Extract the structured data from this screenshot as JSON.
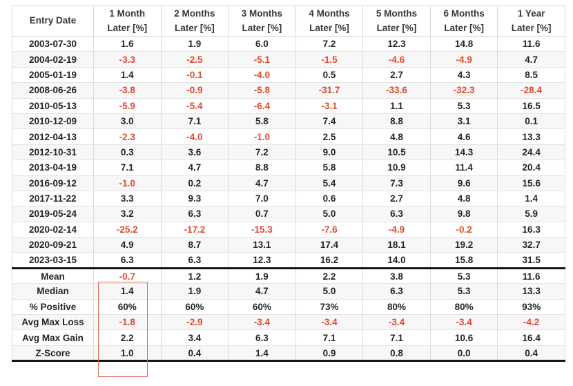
{
  "header": {
    "entry_date_label": "Entry Date",
    "period_labels": [
      [
        "1 Month",
        "Later [%]"
      ],
      [
        "2 Months",
        "Later [%]"
      ],
      [
        "3 Months",
        "Later [%]"
      ],
      [
        "4 Months",
        "Later [%]"
      ],
      [
        "5 Months",
        "Later [%]"
      ],
      [
        "6 Months",
        "Later [%]"
      ],
      [
        "1 Year",
        "Later [%]"
      ]
    ]
  },
  "rows": [
    {
      "date": "2003-07-30",
      "values": [
        "1.6",
        "1.9",
        "6.0",
        "7.2",
        "12.3",
        "14.8",
        "11.6"
      ]
    },
    {
      "date": "2004-02-19",
      "values": [
        "-3.3",
        "-2.5",
        "-5.1",
        "-1.5",
        "-4.6",
        "-4.9",
        "4.7"
      ]
    },
    {
      "date": "2005-01-19",
      "values": [
        "1.4",
        "-0.1",
        "-4.0",
        "0.5",
        "2.7",
        "4.3",
        "8.5"
      ]
    },
    {
      "date": "2008-06-26",
      "values": [
        "-3.8",
        "-0.9",
        "-5.8",
        "-31.7",
        "-33.6",
        "-32.3",
        "-28.4"
      ]
    },
    {
      "date": "2010-05-13",
      "values": [
        "-5.9",
        "-5.4",
        "-6.4",
        "-3.1",
        "1.1",
        "5.3",
        "16.5"
      ]
    },
    {
      "date": "2010-12-09",
      "values": [
        "3.0",
        "7.1",
        "5.8",
        "7.4",
        "8.8",
        "3.1",
        "0.1"
      ]
    },
    {
      "date": "2012-04-13",
      "values": [
        "-2.3",
        "-4.0",
        "-1.0",
        "2.5",
        "4.8",
        "4.6",
        "13.3"
      ]
    },
    {
      "date": "2012-10-31",
      "values": [
        "0.3",
        "3.6",
        "7.2",
        "9.0",
        "10.5",
        "14.3",
        "24.4"
      ]
    },
    {
      "date": "2013-04-19",
      "values": [
        "7.1",
        "4.7",
        "8.8",
        "5.8",
        "10.9",
        "11.4",
        "20.4"
      ]
    },
    {
      "date": "2016-09-12",
      "values": [
        "-1.0",
        "0.2",
        "4.7",
        "5.4",
        "7.3",
        "9.6",
        "15.6"
      ]
    },
    {
      "date": "2017-11-22",
      "values": [
        "3.3",
        "9.3",
        "7.0",
        "0.6",
        "2.7",
        "4.8",
        "1.4"
      ]
    },
    {
      "date": "2019-05-24",
      "values": [
        "3.2",
        "6.3",
        "0.7",
        "5.0",
        "6.3",
        "9.8",
        "5.9"
      ]
    },
    {
      "date": "2020-02-14",
      "values": [
        "-25.2",
        "-17.2",
        "-15.3",
        "-7.6",
        "-4.9",
        "-0.2",
        "16.3"
      ]
    },
    {
      "date": "2020-09-21",
      "values": [
        "4.9",
        "8.7",
        "13.1",
        "17.4",
        "18.1",
        "19.2",
        "32.7"
      ]
    },
    {
      "date": "2023-03-15",
      "values": [
        "6.3",
        "6.3",
        "12.3",
        "16.2",
        "14.0",
        "15.8",
        "31.5"
      ]
    }
  ],
  "summary": [
    {
      "label": "Mean",
      "values": [
        "-0.7",
        "1.2",
        "1.9",
        "2.2",
        "3.8",
        "5.3",
        "11.6"
      ]
    },
    {
      "label": "Median",
      "values": [
        "1.4",
        "1.9",
        "4.7",
        "5.0",
        "6.3",
        "5.3",
        "13.3"
      ]
    },
    {
      "label": "% Positive",
      "values": [
        "60%",
        "60%",
        "60%",
        "73%",
        "80%",
        "80%",
        "93%"
      ]
    },
    {
      "label": "Avg Max Loss",
      "values": [
        "-1.8",
        "-2.9",
        "-3.4",
        "-3.4",
        "-3.4",
        "-3.4",
        "-4.2"
      ]
    },
    {
      "label": "Avg Max Gain",
      "values": [
        "2.2",
        "3.4",
        "6.3",
        "7.1",
        "7.1",
        "10.6",
        "16.4"
      ]
    },
    {
      "label": "Z-Score",
      "values": [
        "1.0",
        "0.4",
        "1.4",
        "0.9",
        "0.8",
        "0.0",
        "0.4"
      ]
    }
  ],
  "annotations": {
    "highlight_box_target": "1 Month Later [%] summary column"
  },
  "colors": {
    "negative_text": "#e0492c",
    "positive_text": "#212529",
    "header_text": "#33373d",
    "stripe": "#f7f7f7",
    "section_divider": "#141414",
    "highlight_border": "#e26a52"
  },
  "chart_data": {
    "type": "table",
    "columns": [
      "Entry Date",
      "1 Month Later [%]",
      "2 Months Later [%]",
      "3 Months Later [%]",
      "4 Months Later [%]",
      "5 Months Later [%]",
      "6 Months Later [%]",
      "1 Year Later [%]"
    ],
    "rows": [
      [
        "2003-07-30",
        1.6,
        1.9,
        6.0,
        7.2,
        12.3,
        14.8,
        11.6
      ],
      [
        "2004-02-19",
        -3.3,
        -2.5,
        -5.1,
        -1.5,
        -4.6,
        -4.9,
        4.7
      ],
      [
        "2005-01-19",
        1.4,
        -0.1,
        -4.0,
        0.5,
        2.7,
        4.3,
        8.5
      ],
      [
        "2008-06-26",
        -3.8,
        -0.9,
        -5.8,
        -31.7,
        -33.6,
        -32.3,
        -28.4
      ],
      [
        "2010-05-13",
        -5.9,
        -5.4,
        -6.4,
        -3.1,
        1.1,
        5.3,
        16.5
      ],
      [
        "2010-12-09",
        3.0,
        7.1,
        5.8,
        7.4,
        8.8,
        3.1,
        0.1
      ],
      [
        "2012-04-13",
        -2.3,
        -4.0,
        -1.0,
        2.5,
        4.8,
        4.6,
        13.3
      ],
      [
        "2012-10-31",
        0.3,
        3.6,
        7.2,
        9.0,
        10.5,
        14.3,
        24.4
      ],
      [
        "2013-04-19",
        7.1,
        4.7,
        8.8,
        5.8,
        10.9,
        11.4,
        20.4
      ],
      [
        "2016-09-12",
        -1.0,
        0.2,
        4.7,
        5.4,
        7.3,
        9.6,
        15.6
      ],
      [
        "2017-11-22",
        3.3,
        9.3,
        7.0,
        0.6,
        2.7,
        4.8,
        1.4
      ],
      [
        "2019-05-24",
        3.2,
        6.3,
        0.7,
        5.0,
        6.3,
        9.8,
        5.9
      ],
      [
        "2020-02-14",
        -25.2,
        -17.2,
        -15.3,
        -7.6,
        -4.9,
        -0.2,
        16.3
      ],
      [
        "2020-09-21",
        4.9,
        8.7,
        13.1,
        17.4,
        18.1,
        19.2,
        32.7
      ],
      [
        "2023-03-15",
        6.3,
        6.3,
        12.3,
        16.2,
        14.0,
        15.8,
        31.5
      ]
    ],
    "summary_rows": [
      [
        "Mean",
        -0.7,
        1.2,
        1.9,
        2.2,
        3.8,
        5.3,
        11.6
      ],
      [
        "Median",
        1.4,
        1.9,
        4.7,
        5.0,
        6.3,
        5.3,
        13.3
      ],
      [
        "% Positive",
        "60%",
        "60%",
        "60%",
        "73%",
        "80%",
        "80%",
        "93%"
      ],
      [
        "Avg Max Loss",
        -1.8,
        -2.9,
        -3.4,
        -3.4,
        -3.4,
        -3.4,
        -4.2
      ],
      [
        "Avg Max Gain",
        2.2,
        3.4,
        6.3,
        7.1,
        7.1,
        10.6,
        16.4
      ],
      [
        "Z-Score",
        1.0,
        0.4,
        1.4,
        0.9,
        0.8,
        0.0,
        0.4
      ]
    ]
  }
}
